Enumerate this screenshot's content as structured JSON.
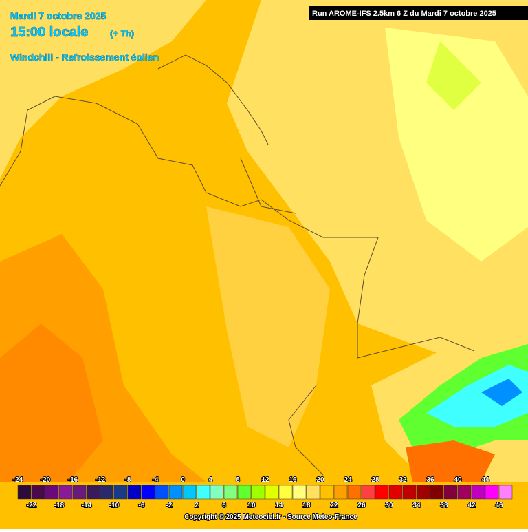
{
  "header": {
    "date": "Mardi 7 octobre 2025",
    "time": "15:00 locale",
    "offset": "(+ 7h)",
    "title": "Windchill - Refroissement éolien",
    "run": "Run AROME-IFS 2.5km 6 Z du Mardi 7 octobre 2025"
  },
  "legend": {
    "labels": [
      -24,
      -22,
      -20,
      -18,
      -16,
      -14,
      -12,
      -10,
      -8,
      -6,
      -4,
      -2,
      0,
      2,
      4,
      6,
      8,
      10,
      12,
      14,
      16,
      18,
      20,
      22,
      24,
      26,
      28,
      30,
      32,
      34,
      36,
      38,
      40,
      42,
      44,
      46
    ],
    "colors": [
      "#2d0a3a",
      "#4a0a4a",
      "#6a0a7a",
      "#8a1a9a",
      "#6a1a7a",
      "#3a1a5a",
      "#2a2a6a",
      "#1a3a8a",
      "#0000c8",
      "#0000ff",
      "#0050ff",
      "#0090ff",
      "#00c8ff",
      "#40ffff",
      "#80ffc0",
      "#80ff80",
      "#60ff30",
      "#a0ff00",
      "#e0ff00",
      "#ffff40",
      "#ffff80",
      "#ffe060",
      "#ffc000",
      "#ffa000",
      "#ff7000",
      "#ff4040",
      "#ff0000",
      "#e00000",
      "#c00000",
      "#a00000",
      "#800000",
      "#800040",
      "#a00060",
      "#c000c0",
      "#ff00ff",
      "#ff80ff"
    ]
  },
  "footer": {
    "copyright": "Copyright © 2025 Meteociel.fr - Source Meteo-France"
  }
}
